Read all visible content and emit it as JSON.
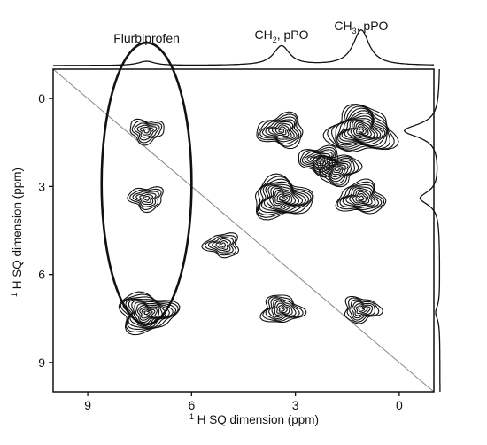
{
  "chart_data": {
    "type": "contour",
    "title": "",
    "xlabel": {
      "prefix": "1",
      "main": "H SQ dimension (ppm)"
    },
    "ylabel": {
      "prefix": "1",
      "main": "H SQ dimension (ppm)"
    },
    "x_axis": {
      "reversed": true,
      "range": [
        10,
        -1
      ],
      "ticks": [
        "9",
        "6",
        "3",
        "0"
      ],
      "tick_values": [
        9,
        6,
        3,
        0
      ]
    },
    "y_axis": {
      "reversed": true,
      "range": [
        -1,
        10
      ],
      "ticks": [
        "0",
        "3",
        "6",
        "9"
      ],
      "tick_values": [
        0,
        3,
        6,
        9
      ]
    },
    "diagonal": true,
    "annotations": [
      {
        "text": "Flurbiprofen",
        "ppm": 7.3
      },
      {
        "pre": "CH",
        "sub": "2",
        "post": ", pPO",
        "ppm": 3.4
      },
      {
        "pre": "CH",
        "sub": "3",
        "post": ", pPO",
        "ppm": 1.1
      }
    ],
    "projection_peaks": [
      {
        "ppm": 7.3,
        "rel_height": 0.12
      },
      {
        "ppm": 3.4,
        "rel_height": 0.55
      },
      {
        "ppm": 1.1,
        "rel_height": 1.0
      }
    ],
    "peaks": [
      {
        "x": 1.1,
        "y": 1.1,
        "intensity": 1.0
      },
      {
        "x": 3.4,
        "y": 3.4,
        "intensity": 0.8
      },
      {
        "x": 7.3,
        "y": 7.3,
        "intensity": 0.75
      },
      {
        "x": 1.8,
        "y": 2.4,
        "intensity": 0.45
      },
      {
        "x": 2.3,
        "y": 2.1,
        "intensity": 0.35
      },
      {
        "x": 3.4,
        "y": 1.1,
        "intensity": 0.5
      },
      {
        "x": 1.1,
        "y": 3.4,
        "intensity": 0.5
      },
      {
        "x": 3.4,
        "y": 7.2,
        "intensity": 0.35
      },
      {
        "x": 1.1,
        "y": 7.2,
        "intensity": 0.25
      },
      {
        "x": 7.3,
        "y": 1.1,
        "intensity": 0.2
      },
      {
        "x": 7.3,
        "y": 3.4,
        "intensity": 0.2
      },
      {
        "x": 5.1,
        "y": 5.0,
        "intensity": 0.2
      }
    ],
    "highlight_ellipse": {
      "cx": 7.3,
      "cy": 2.9,
      "rx": 1.3,
      "ry": 4.8
    }
  },
  "colors": {
    "ink": "#111111",
    "diagonal": "#888888",
    "background": "#ffffff"
  }
}
